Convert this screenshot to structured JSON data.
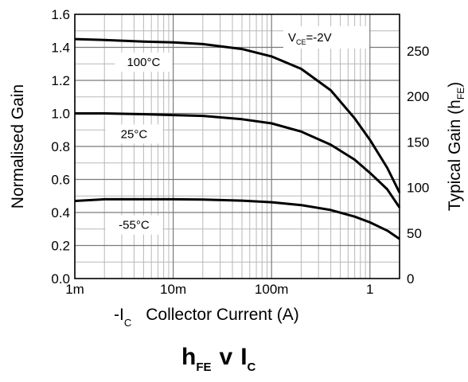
{
  "chart_data": {
    "type": "line",
    "title": "hFE v IC",
    "title_parts": {
      "main": "h",
      "main_sub": "FE",
      "joiner": "v",
      "var": "I",
      "var_sub": "C"
    },
    "xlabel": "-IC  Collector Current (A)",
    "xlabel_parts": {
      "prefix": "-I",
      "prefix_sub": "C",
      "rest": "Collector Current (A)"
    },
    "ylabel": "Normalised Gain",
    "y2label": "Typical Gain (hFE)",
    "y2label_parts": {
      "text": "Typical Gain (h",
      "sub": "FE",
      "close": ")"
    },
    "x_scale": "log",
    "xlim": [
      0.001,
      2
    ],
    "ylim": [
      0,
      1.6
    ],
    "y2lim": [
      0,
      290
    ],
    "grid": true,
    "x_ticks": [
      {
        "value": 0.001,
        "label": "1m"
      },
      {
        "value": 0.01,
        "label": "10m"
      },
      {
        "value": 0.1,
        "label": "100m"
      },
      {
        "value": 1,
        "label": "1"
      }
    ],
    "y_ticks": [
      {
        "value": 0.0,
        "label": "0.0"
      },
      {
        "value": 0.2,
        "label": "0.2"
      },
      {
        "value": 0.4,
        "label": "0.4"
      },
      {
        "value": 0.6,
        "label": "0.6"
      },
      {
        "value": 0.8,
        "label": "0.8"
      },
      {
        "value": 1.0,
        "label": "1.0"
      },
      {
        "value": 1.2,
        "label": "1.2"
      },
      {
        "value": 1.4,
        "label": "1.4"
      },
      {
        "value": 1.6,
        "label": "1.6"
      }
    ],
    "y2_ticks": [
      {
        "value": 0,
        "label": "0"
      },
      {
        "value": 50,
        "label": "50"
      },
      {
        "value": 100,
        "label": "100"
      },
      {
        "value": 150,
        "label": "150"
      },
      {
        "value": 200,
        "label": "200"
      },
      {
        "value": 250,
        "label": "250"
      }
    ],
    "annotation": {
      "text": "V",
      "sub": "CE",
      "rest": "=-2V"
    },
    "series": [
      {
        "name": "100°C",
        "x": [
          0.001,
          0.002,
          0.005,
          0.01,
          0.02,
          0.05,
          0.1,
          0.2,
          0.4,
          0.7,
          1.0,
          1.5,
          2.0
        ],
        "y": [
          1.45,
          1.445,
          1.435,
          1.43,
          1.42,
          1.39,
          1.345,
          1.27,
          1.14,
          0.97,
          0.84,
          0.67,
          0.52
        ]
      },
      {
        "name": "25°C",
        "x": [
          0.001,
          0.002,
          0.005,
          0.01,
          0.02,
          0.05,
          0.1,
          0.2,
          0.4,
          0.7,
          1.0,
          1.5,
          2.0
        ],
        "y": [
          1.0,
          1.0,
          0.995,
          0.99,
          0.985,
          0.965,
          0.94,
          0.89,
          0.81,
          0.72,
          0.64,
          0.54,
          0.43
        ]
      },
      {
        "name": "-55°C",
        "x": [
          0.001,
          0.002,
          0.005,
          0.01,
          0.02,
          0.05,
          0.1,
          0.2,
          0.4,
          0.7,
          1.0,
          1.5,
          2.0
        ],
        "y": [
          0.47,
          0.48,
          0.48,
          0.48,
          0.478,
          0.472,
          0.462,
          0.445,
          0.415,
          0.375,
          0.34,
          0.29,
          0.24
        ]
      }
    ]
  }
}
